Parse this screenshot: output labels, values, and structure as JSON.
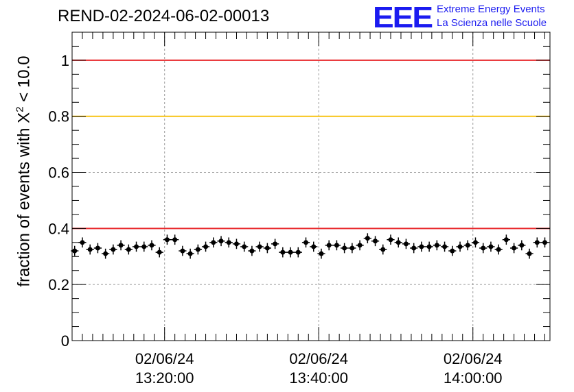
{
  "header": {
    "title": "REND-02-2024-06-02-00013",
    "logo": "EEE",
    "logo_line1": "Extreme Energy Events",
    "logo_line2": "La Scienza nelle Scuole"
  },
  "chart_data": {
    "type": "scatter",
    "ylabel_prefix": "fraction of events with X",
    "ylabel_exponent": "2",
    "ylabel_suffix": " < 10.0",
    "ylim": [
      0,
      1.1
    ],
    "yticks": [
      0,
      0.2,
      0.4,
      0.6,
      0.8,
      1
    ],
    "ytick_labels": [
      "0",
      "0.2",
      "0.4",
      "0.6",
      "0.8",
      "1"
    ],
    "xlim_minutes": [
      0,
      93
    ],
    "xticks": [
      {
        "minute": 18,
        "date": "02/06/24",
        "time": "13:20:00"
      },
      {
        "minute": 48,
        "date": "02/06/24",
        "time": "13:40:00"
      },
      {
        "minute": 78,
        "date": "02/06/24",
        "time": "14:00:00"
      }
    ],
    "reference_lines": [
      {
        "y": 1.0,
        "color": "#e8282b"
      },
      {
        "y": 0.8,
        "color": "#f7c312"
      },
      {
        "y": 0.4,
        "color": "#e8282b"
      }
    ],
    "grid": true,
    "points": {
      "x_start_minute": 0.5,
      "x_step_minute": 1.5,
      "x_err_minute": 0.75,
      "y_err": 0.018,
      "y": [
        0.32,
        0.35,
        0.325,
        0.33,
        0.31,
        0.325,
        0.34,
        0.325,
        0.335,
        0.335,
        0.34,
        0.315,
        0.36,
        0.36,
        0.32,
        0.31,
        0.325,
        0.335,
        0.35,
        0.355,
        0.35,
        0.345,
        0.335,
        0.32,
        0.335,
        0.33,
        0.345,
        0.315,
        0.315,
        0.315,
        0.35,
        0.335,
        0.31,
        0.34,
        0.34,
        0.33,
        0.33,
        0.34,
        0.365,
        0.355,
        0.325,
        0.36,
        0.35,
        0.345,
        0.33,
        0.335,
        0.335,
        0.34,
        0.335,
        0.32,
        0.335,
        0.34,
        0.35,
        0.33,
        0.335,
        0.325,
        0.36,
        0.33,
        0.34,
        0.31,
        0.35,
        0.35
      ]
    }
  }
}
